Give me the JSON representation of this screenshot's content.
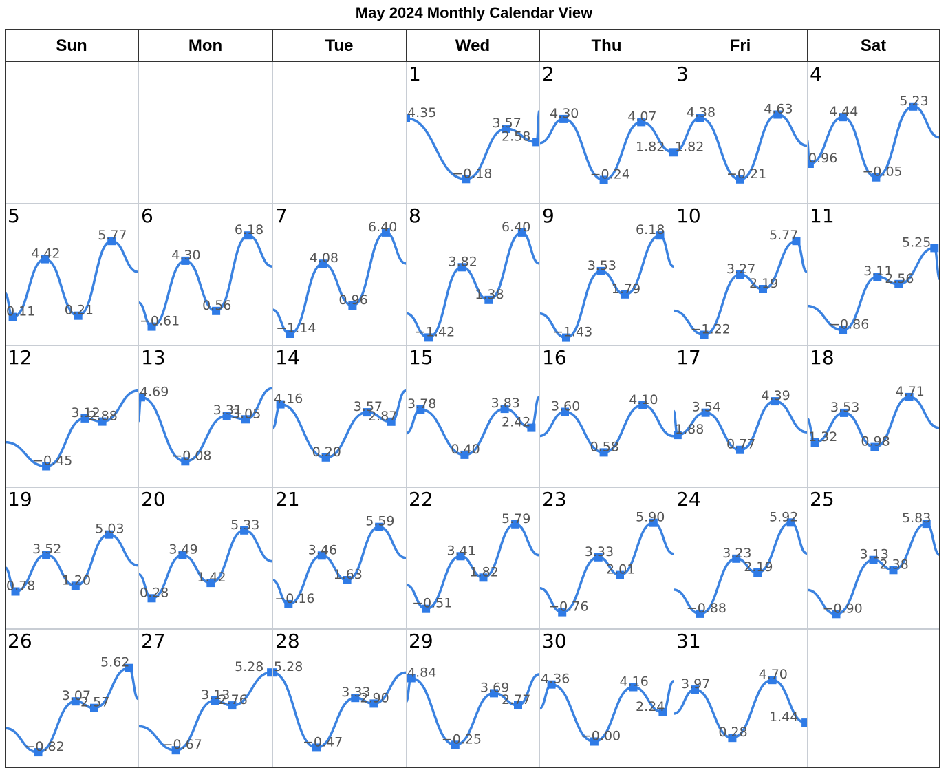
{
  "title": "May 2024 Monthly Calendar View",
  "weekdays": [
    "Sun",
    "Mon",
    "Tue",
    "Wed",
    "Thu",
    "Fri",
    "Sat"
  ],
  "colors": {
    "line": "#3b82e0",
    "marker": "#2f7be6",
    "label": "#555555",
    "grid": "#c8cdd4"
  },
  "chart_data": {
    "type": "line",
    "title": "May 2024 Monthly Calendar View",
    "layout": "calendar-grid",
    "first_weekday_index": 3,
    "ylim": [
      -1.5,
      6.5
    ],
    "days": [
      {
        "day": 1,
        "points": [
          {
            "x": 0.0,
            "y": 4.35
          },
          {
            "x": 0.45,
            "y": -0.18
          },
          {
            "x": 0.75,
            "y": 3.57
          },
          {
            "x": 0.98,
            "y": 2.58
          }
        ]
      },
      {
        "day": 2,
        "points": [
          {
            "x": 0.18,
            "y": 4.3
          },
          {
            "x": 0.48,
            "y": -0.24
          },
          {
            "x": 0.76,
            "y": 4.07
          },
          {
            "x": 1.0,
            "y": 1.82
          }
        ]
      },
      {
        "day": 3,
        "points": [
          {
            "x": 0.2,
            "y": 4.38
          },
          {
            "x": 0.5,
            "y": -0.21
          },
          {
            "x": 0.78,
            "y": 4.63
          },
          {
            "x": 0.0,
            "y": 1.82
          }
        ]
      },
      {
        "day": 4,
        "points": [
          {
            "x": 0.02,
            "y": 0.96
          },
          {
            "x": 0.27,
            "y": 4.44
          },
          {
            "x": 0.52,
            "y": -0.05
          },
          {
            "x": 0.8,
            "y": 5.23
          }
        ]
      },
      {
        "day": 5,
        "points": [
          {
            "x": 0.06,
            "y": 0.11
          },
          {
            "x": 0.3,
            "y": 4.42
          },
          {
            "x": 0.55,
            "y": 0.21
          },
          {
            "x": 0.8,
            "y": 5.77
          }
        ]
      },
      {
        "day": 6,
        "points": [
          {
            "x": 0.1,
            "y": -0.61
          },
          {
            "x": 0.35,
            "y": 4.3
          },
          {
            "x": 0.58,
            "y": 0.56
          },
          {
            "x": 0.82,
            "y": 6.18
          }
        ]
      },
      {
        "day": 7,
        "points": [
          {
            "x": 0.13,
            "y": -1.14
          },
          {
            "x": 0.38,
            "y": 4.08
          },
          {
            "x": 0.6,
            "y": 0.96
          },
          {
            "x": 0.85,
            "y": 6.4
          }
        ]
      },
      {
        "day": 8,
        "points": [
          {
            "x": 0.17,
            "y": -1.42
          },
          {
            "x": 0.42,
            "y": 3.82
          },
          {
            "x": 0.62,
            "y": 1.38
          },
          {
            "x": 0.87,
            "y": 6.4
          }
        ]
      },
      {
        "day": 9,
        "points": [
          {
            "x": 0.2,
            "y": -1.43
          },
          {
            "x": 0.46,
            "y": 3.53
          },
          {
            "x": 0.64,
            "y": 1.79
          },
          {
            "x": 0.9,
            "y": 6.18
          }
        ]
      },
      {
        "day": 10,
        "points": [
          {
            "x": 0.23,
            "y": -1.22
          },
          {
            "x": 0.5,
            "y": 3.27
          },
          {
            "x": 0.67,
            "y": 2.19
          },
          {
            "x": 0.92,
            "y": 5.77
          }
        ]
      },
      {
        "day": 11,
        "points": [
          {
            "x": 0.27,
            "y": -0.86
          },
          {
            "x": 0.53,
            "y": 3.11
          },
          {
            "x": 0.69,
            "y": 2.56
          },
          {
            "x": 0.96,
            "y": 5.25
          }
        ]
      },
      {
        "day": 12,
        "points": [
          {
            "x": 0.31,
            "y": -0.45
          },
          {
            "x": 0.6,
            "y": 3.12
          },
          {
            "x": 0.73,
            "y": 2.88
          }
        ]
      },
      {
        "day": 13,
        "points": [
          {
            "x": 0.02,
            "y": 4.69
          },
          {
            "x": 0.35,
            "y": -0.08
          },
          {
            "x": 0.66,
            "y": 3.31
          },
          {
            "x": 0.8,
            "y": 3.05
          }
        ]
      },
      {
        "day": 14,
        "points": [
          {
            "x": 0.06,
            "y": 4.16
          },
          {
            "x": 0.4,
            "y": 0.2
          },
          {
            "x": 0.71,
            "y": 3.57
          },
          {
            "x": 0.89,
            "y": 2.87
          }
        ]
      },
      {
        "day": 15,
        "points": [
          {
            "x": 0.11,
            "y": 3.78
          },
          {
            "x": 0.44,
            "y": 0.4
          },
          {
            "x": 0.74,
            "y": 3.83
          },
          {
            "x": 0.94,
            "y": 2.42
          }
        ]
      },
      {
        "day": 16,
        "points": [
          {
            "x": 0.19,
            "y": 3.6
          },
          {
            "x": 0.48,
            "y": 0.58
          },
          {
            "x": 0.77,
            "y": 4.1
          }
        ]
      },
      {
        "day": 17,
        "points": [
          {
            "x": 0.03,
            "y": 1.88
          },
          {
            "x": 0.24,
            "y": 3.54
          },
          {
            "x": 0.5,
            "y": 0.77
          },
          {
            "x": 0.76,
            "y": 4.39
          }
        ]
      },
      {
        "day": 18,
        "points": [
          {
            "x": 0.06,
            "y": 1.32
          },
          {
            "x": 0.28,
            "y": 3.53
          },
          {
            "x": 0.51,
            "y": 0.98
          },
          {
            "x": 0.77,
            "y": 4.71
          }
        ]
      },
      {
        "day": 19,
        "points": [
          {
            "x": 0.08,
            "y": 0.78
          },
          {
            "x": 0.31,
            "y": 3.52
          },
          {
            "x": 0.53,
            "y": 1.2
          },
          {
            "x": 0.78,
            "y": 5.03
          }
        ]
      },
      {
        "day": 20,
        "points": [
          {
            "x": 0.1,
            "y": 0.28
          },
          {
            "x": 0.33,
            "y": 3.49
          },
          {
            "x": 0.54,
            "y": 1.42
          },
          {
            "x": 0.79,
            "y": 5.33
          }
        ]
      },
      {
        "day": 21,
        "points": [
          {
            "x": 0.12,
            "y": -0.16
          },
          {
            "x": 0.37,
            "y": 3.46
          },
          {
            "x": 0.56,
            "y": 1.63
          },
          {
            "x": 0.8,
            "y": 5.59
          }
        ]
      },
      {
        "day": 22,
        "points": [
          {
            "x": 0.15,
            "y": -0.51
          },
          {
            "x": 0.41,
            "y": 3.41
          },
          {
            "x": 0.58,
            "y": 1.82
          },
          {
            "x": 0.82,
            "y": 5.79
          }
        ]
      },
      {
        "day": 23,
        "points": [
          {
            "x": 0.17,
            "y": -0.76
          },
          {
            "x": 0.44,
            "y": 3.33
          },
          {
            "x": 0.6,
            "y": 2.01
          },
          {
            "x": 0.85,
            "y": 5.9
          }
        ]
      },
      {
        "day": 24,
        "points": [
          {
            "x": 0.2,
            "y": -0.88
          },
          {
            "x": 0.47,
            "y": 3.23
          },
          {
            "x": 0.63,
            "y": 2.19
          },
          {
            "x": 0.88,
            "y": 5.92
          }
        ]
      },
      {
        "day": 25,
        "points": [
          {
            "x": 0.22,
            "y": -0.9
          },
          {
            "x": 0.5,
            "y": 3.13
          },
          {
            "x": 0.65,
            "y": 2.38
          },
          {
            "x": 0.9,
            "y": 5.83
          }
        ]
      },
      {
        "day": 26,
        "points": [
          {
            "x": 0.25,
            "y": -0.82
          },
          {
            "x": 0.53,
            "y": 3.07
          },
          {
            "x": 0.67,
            "y": 2.57
          },
          {
            "x": 0.93,
            "y": 5.62
          }
        ]
      },
      {
        "day": 27,
        "points": [
          {
            "x": 0.28,
            "y": -0.67
          },
          {
            "x": 0.57,
            "y": 3.13
          },
          {
            "x": 0.7,
            "y": 2.76
          },
          {
            "x": 0.99,
            "y": 5.28
          }
        ]
      },
      {
        "day": 28,
        "points": [
          {
            "x": 0.0,
            "y": 5.28
          },
          {
            "x": 0.33,
            "y": -0.47
          },
          {
            "x": 0.62,
            "y": 3.33
          },
          {
            "x": 0.76,
            "y": 2.9
          }
        ]
      },
      {
        "day": 29,
        "points": [
          {
            "x": 0.04,
            "y": 4.84
          },
          {
            "x": 0.37,
            "y": -0.25
          },
          {
            "x": 0.66,
            "y": 3.69
          },
          {
            "x": 0.84,
            "y": 2.77
          }
        ]
      },
      {
        "day": 30,
        "points": [
          {
            "x": 0.09,
            "y": 4.36
          },
          {
            "x": 0.41,
            "y": -0.0
          },
          {
            "x": 0.7,
            "y": 4.16
          },
          {
            "x": 0.92,
            "y": 2.24
          }
        ]
      },
      {
        "day": 31,
        "points": [
          {
            "x": 0.16,
            "y": 3.97
          },
          {
            "x": 0.44,
            "y": 0.28
          },
          {
            "x": 0.74,
            "y": 4.7
          },
          {
            "x": 0.99,
            "y": 1.44
          }
        ]
      }
    ],
    "labels": {
      "1": [
        "4.35",
        "−0.18",
        "3.57",
        "2.58"
      ],
      "2": [
        "4.30",
        "−0.24",
        "4.07",
        "1.82"
      ],
      "3": [
        "4.38",
        "−0.21",
        "4.63",
        "1.82"
      ],
      "4": [
        "0.96",
        "4.44",
        "−0.05",
        "5.23"
      ],
      "5": [
        "0.11",
        "4.42",
        "0.21",
        "5.77"
      ],
      "6": [
        "−0.61",
        "4.30",
        "0.56",
        "6.18"
      ],
      "7": [
        "−1.14",
        "4.08",
        "0.96",
        "6.40"
      ],
      "8": [
        "−1.42",
        "3.82",
        "1.38",
        "6.40"
      ],
      "9": [
        "−1.43",
        "3.53",
        "1.79",
        "6.18"
      ],
      "10": [
        "−1.22",
        "3.27",
        "2.19",
        "5.77"
      ],
      "11": [
        "−0.86",
        "3.11",
        "2.56",
        "5.25"
      ],
      "12": [
        "−0.45",
        "3.12",
        "2.88"
      ],
      "13": [
        "4.69",
        "−0.08",
        "3.31",
        "3.05"
      ],
      "14": [
        "4.16",
        "0.20",
        "3.57",
        "2.87"
      ],
      "15": [
        "3.78",
        "0.40",
        "3.83",
        "2.42"
      ],
      "16": [
        "3.60",
        "0.58",
        "4.10"
      ],
      "17": [
        "1.88",
        "3.54",
        "0.77",
        "4.39"
      ],
      "18": [
        "1.32",
        "3.53",
        "0.98",
        "4.71"
      ],
      "19": [
        "0.78",
        "3.52",
        "1.20",
        "5.03"
      ],
      "20": [
        "0.28",
        "3.49",
        "1.42",
        "5.33"
      ],
      "21": [
        "−0.16",
        "3.46",
        "1.63",
        "5.59"
      ],
      "22": [
        "−0.51",
        "3.41",
        "1.82",
        "5.79"
      ],
      "23": [
        "−0.76",
        "3.33",
        "2.01",
        "5.90"
      ],
      "24": [
        "−0.88",
        "3.23",
        "2.19",
        "5.92"
      ],
      "25": [
        "−0.90",
        "3.13",
        "2.38",
        "5.83"
      ],
      "26": [
        "−0.82",
        "3.07",
        "2.57",
        "5.62"
      ],
      "27": [
        "−0.67",
        "3.13",
        "2.76",
        "5.28"
      ],
      "28": [
        "5.28",
        "−0.47",
        "3.33",
        "2.90"
      ],
      "29": [
        "4.84",
        "−0.25",
        "3.69",
        "2.77"
      ],
      "30": [
        "4.36",
        "−0.00",
        "4.16",
        "2.24"
      ],
      "31": [
        "3.97",
        "0.28",
        "4.70",
        "1.44"
      ]
    }
  }
}
